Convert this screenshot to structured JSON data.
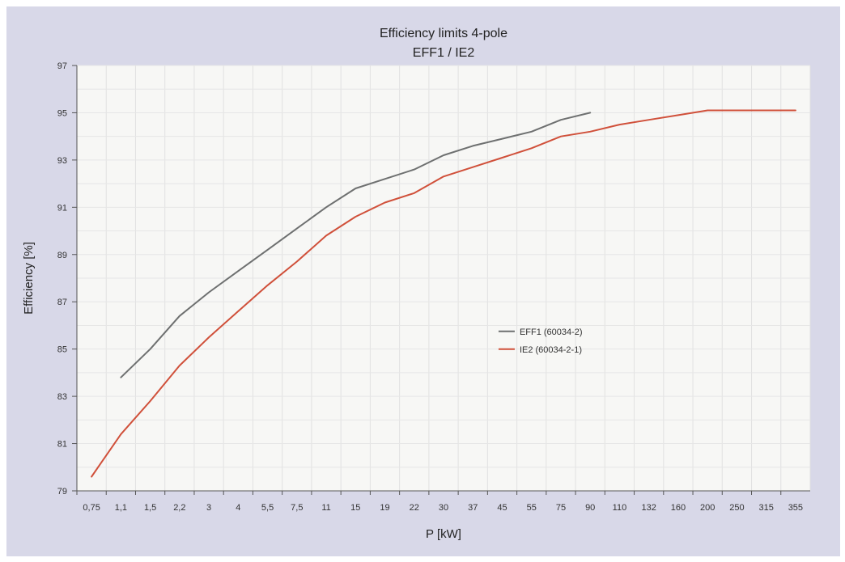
{
  "chart_data": {
    "type": "line",
    "title": "Efficiency limits 4-pole",
    "subtitle": "EFF1 / IE2",
    "xlabel": "P [kW]",
    "ylabel": "Efficiency [%]",
    "categories": [
      "0,75",
      "1,1",
      "1,5",
      "2,2",
      "3",
      "4",
      "5,5",
      "7,5",
      "11",
      "15",
      "19",
      "22",
      "30",
      "37",
      "45",
      "55",
      "75",
      "90",
      "110",
      "132",
      "160",
      "200",
      "250",
      "315",
      "355"
    ],
    "ylim": [
      79,
      97
    ],
    "yticks": [
      "79",
      "81",
      "83",
      "85",
      "87",
      "89",
      "91",
      "93",
      "95",
      "97"
    ],
    "grid": true,
    "legend_position": "center-right",
    "series": [
      {
        "name": "EFF1 (60034-2)",
        "color": "#6e7070",
        "values": [
          null,
          83.8,
          85.0,
          86.4,
          87.4,
          88.3,
          89.2,
          90.1,
          91.0,
          91.8,
          92.2,
          92.6,
          93.2,
          93.6,
          93.9,
          94.2,
          94.7,
          95.0,
          null,
          null,
          null,
          null,
          null,
          null,
          null
        ]
      },
      {
        "name": "IE2 (60034-2-1)",
        "color": "#d0503a",
        "values": [
          79.6,
          81.4,
          82.8,
          84.3,
          85.5,
          86.6,
          87.7,
          88.7,
          89.8,
          90.6,
          91.2,
          91.6,
          92.3,
          92.7,
          93.1,
          93.5,
          94.0,
          94.2,
          94.5,
          94.7,
          94.9,
          95.1,
          95.1,
          95.1,
          95.1
        ]
      }
    ]
  }
}
